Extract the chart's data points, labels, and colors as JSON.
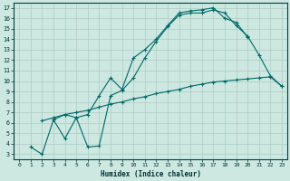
{
  "title": "",
  "xlabel": "Humidex (Indice chaleur)",
  "background_color": "#cce8e0",
  "grid_color": "#aaccc4",
  "line_color": "#006868",
  "xlim": [
    -0.5,
    23.5
  ],
  "ylim": [
    2.5,
    17.5
  ],
  "xticks": [
    0,
    1,
    2,
    3,
    4,
    5,
    6,
    7,
    8,
    9,
    10,
    11,
    12,
    13,
    14,
    15,
    16,
    17,
    18,
    19,
    20,
    21,
    22,
    23
  ],
  "yticks": [
    3,
    4,
    5,
    6,
    7,
    8,
    9,
    10,
    11,
    12,
    13,
    14,
    15,
    16,
    17
  ],
  "curve1_x": [
    1,
    2,
    3,
    4,
    5,
    6,
    7,
    8,
    9,
    10,
    11,
    12,
    13,
    14,
    15,
    16,
    17,
    18,
    19,
    20,
    21,
    22,
    23
  ],
  "curve1_y": [
    3.7,
    3.0,
    6.3,
    4.5,
    6.5,
    3.7,
    3.8,
    8.6,
    9.1,
    10.3,
    12.2,
    13.8,
    15.2,
    16.3,
    16.5,
    16.5,
    16.8,
    16.5,
    15.3,
    14.3,
    12.5,
    10.5,
    9.5
  ],
  "curve2_x": [
    2,
    3,
    4,
    5,
    6,
    7,
    8,
    9,
    10,
    11,
    12,
    13,
    14,
    15,
    16,
    17,
    18,
    19,
    20,
    21,
    22,
    23
  ],
  "curve2_y": [
    6.2,
    6.5,
    6.8,
    7.0,
    7.2,
    7.5,
    7.8,
    8.0,
    8.3,
    8.5,
    8.8,
    9.0,
    9.2,
    9.5,
    9.7,
    9.9,
    10.0,
    10.1,
    10.2,
    10.3,
    10.4,
    9.5
  ],
  "curve3_x": [
    3,
    4,
    5,
    6,
    7,
    8,
    9,
    10,
    11,
    12,
    13,
    14,
    15,
    16,
    17,
    18,
    19,
    20
  ],
  "curve3_y": [
    6.3,
    6.8,
    6.5,
    6.8,
    8.6,
    10.3,
    9.2,
    12.2,
    13.0,
    14.0,
    15.3,
    16.5,
    16.7,
    16.8,
    17.0,
    16.0,
    15.6,
    14.2
  ]
}
